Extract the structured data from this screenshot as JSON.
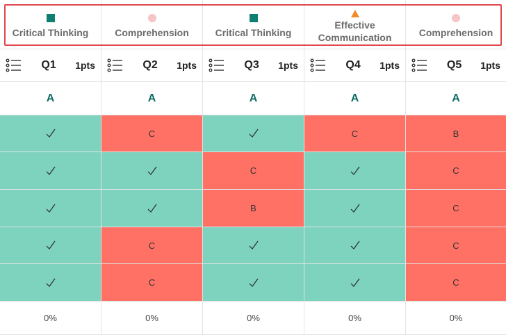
{
  "colors": {
    "correct": "#7dd3bd",
    "incorrect": "#ff7065",
    "critical_thinking": "#0e7f72",
    "comprehension": "#f6c5c7",
    "effective_communication": "#f08a2a",
    "highlight_outline": "#e0474c"
  },
  "skills": [
    {
      "label": "Critical Thinking",
      "marker": "square"
    },
    {
      "label": "Comprehension",
      "marker": "circle"
    },
    {
      "label": "Critical Thinking",
      "marker": "square"
    },
    {
      "label": "Effective Communication",
      "marker": "triangle"
    },
    {
      "label": "Comprehension",
      "marker": "circle"
    }
  ],
  "questions": [
    {
      "name": "Q1",
      "points": "1pts",
      "answer": "A"
    },
    {
      "name": "Q2",
      "points": "1pts",
      "answer": "A"
    },
    {
      "name": "Q3",
      "points": "1pts",
      "answer": "A"
    },
    {
      "name": "Q4",
      "points": "1pts",
      "answer": "A"
    },
    {
      "name": "Q5",
      "points": "1pts",
      "answer": "A"
    }
  ],
  "responses": [
    [
      {
        "status": "correct",
        "text": ""
      },
      {
        "status": "incorrect",
        "text": "C"
      },
      {
        "status": "correct",
        "text": ""
      },
      {
        "status": "incorrect",
        "text": "C"
      },
      {
        "status": "incorrect",
        "text": "B"
      }
    ],
    [
      {
        "status": "correct",
        "text": ""
      },
      {
        "status": "correct",
        "text": ""
      },
      {
        "status": "incorrect",
        "text": "C"
      },
      {
        "status": "correct",
        "text": ""
      },
      {
        "status": "incorrect",
        "text": "C"
      }
    ],
    [
      {
        "status": "correct",
        "text": ""
      },
      {
        "status": "correct",
        "text": ""
      },
      {
        "status": "incorrect",
        "text": "B"
      },
      {
        "status": "correct",
        "text": ""
      },
      {
        "status": "incorrect",
        "text": "C"
      }
    ],
    [
      {
        "status": "correct",
        "text": ""
      },
      {
        "status": "incorrect",
        "text": "C"
      },
      {
        "status": "correct",
        "text": ""
      },
      {
        "status": "correct",
        "text": ""
      },
      {
        "status": "incorrect",
        "text": "C"
      }
    ],
    [
      {
        "status": "correct",
        "text": ""
      },
      {
        "status": "incorrect",
        "text": "C"
      },
      {
        "status": "correct",
        "text": ""
      },
      {
        "status": "correct",
        "text": ""
      },
      {
        "status": "incorrect",
        "text": "C"
      }
    ]
  ],
  "percentages": [
    "0%",
    "0%",
    "0%",
    "0%",
    "0%"
  ],
  "icons": {
    "question_menu": "list-icon",
    "correct_mark": "check-icon"
  }
}
